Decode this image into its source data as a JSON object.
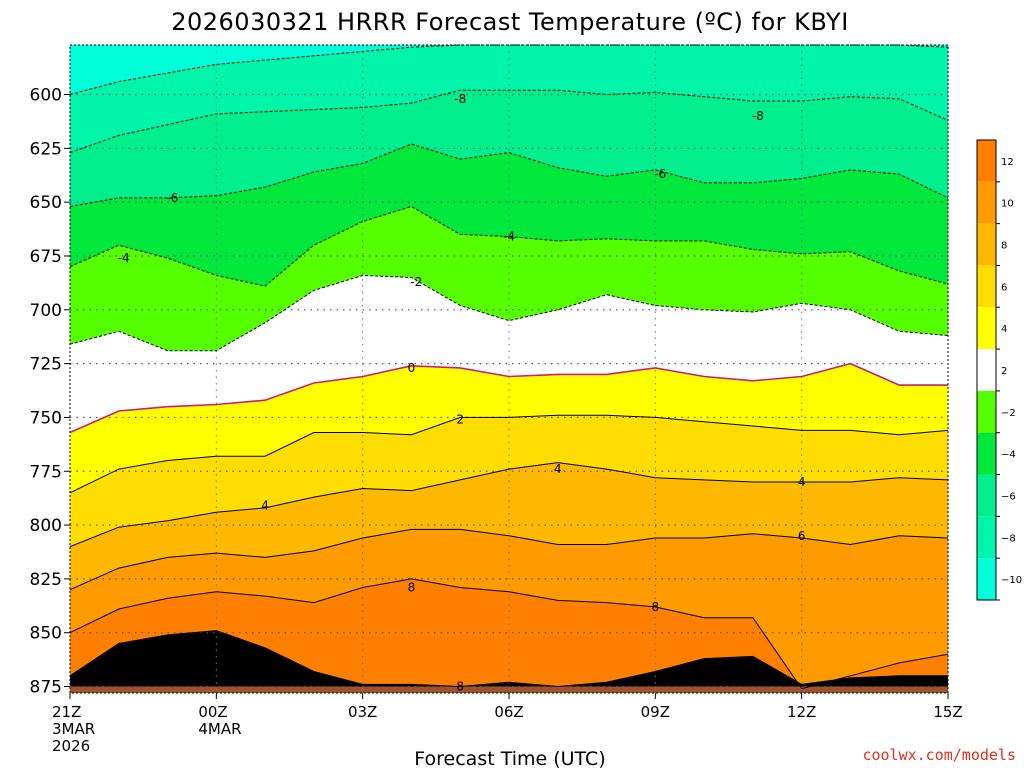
{
  "title": "2026030321 HRRR Forecast Temperature (ºC) for KBYI",
  "credit": "coolwx.com/models",
  "colors": {
    "t_lt_m10": "#00ffd9",
    "t_m10_m8": "#00f5a8",
    "t_m8_m6": "#00ee8b",
    "t_m6_m4": "#00e83c",
    "t_m4_m2": "#55ff00",
    "t_m2_2": "#ffffff",
    "t_2_4": "#ffff00",
    "t_4_6": "#ffdd00",
    "t_6_8": "#ffb800",
    "t_8_10": "#ff9a00",
    "t_10_12": "#ff8000",
    "ground": "#a0522d",
    "zero_line": "#cc1e78",
    "credit": "#e0301e"
  },
  "chart_data": {
    "type": "heatmap",
    "title": "2026030321 HRRR Forecast Temperature (ºC) for KBYI",
    "xlabel": "Forecast Time (UTC)",
    "ylabel": "",
    "x_ticks": [
      {
        "hour": 0,
        "lines": [
          "21Z",
          "3MAR",
          "2026"
        ]
      },
      {
        "hour": 3,
        "lines": [
          "00Z",
          "4MAR"
        ]
      },
      {
        "hour": 6,
        "lines": [
          "03Z"
        ]
      },
      {
        "hour": 9,
        "lines": [
          "06Z"
        ]
      },
      {
        "hour": 12,
        "lines": [
          "09Z"
        ]
      },
      {
        "hour": 15,
        "lines": [
          "12Z"
        ]
      },
      {
        "hour": 18,
        "lines": [
          "15Z"
        ]
      }
    ],
    "y_ticks": [
      600,
      625,
      650,
      675,
      700,
      725,
      750,
      775,
      800,
      825,
      850,
      875
    ],
    "xlim_hours": [
      0,
      18
    ],
    "ylim_hPa": [
      577,
      878
    ],
    "ground_pressure_hPa": 875,
    "colorbar": {
      "labels": [
        "12",
        "10",
        "8",
        "6",
        "4",
        "2",
        "−2",
        "−4",
        "−6",
        "−8",
        "−10"
      ],
      "bands": [
        "t_10_12",
        "t_8_10",
        "t_6_8",
        "t_4_6",
        "t_2_4",
        "t_m2_2",
        "t_m4_m2",
        "t_m6_m4",
        "t_m8_m6",
        "t_m10_m8",
        "t_lt_m10"
      ]
    },
    "hours": [
      0,
      1,
      2,
      3,
      4,
      5,
      6,
      7,
      8,
      9,
      10,
      11,
      12,
      13,
      14,
      15,
      16,
      17,
      18
    ],
    "isotherms": [
      {
        "temp": -10,
        "pressure": [
          600,
          594,
          590,
          586,
          584,
          582,
          580,
          578,
          577,
          577,
          577,
          577,
          577,
          577,
          577,
          577,
          577,
          577,
          578
        ]
      },
      {
        "temp": -8,
        "pressure": [
          627,
          619,
          614,
          609,
          608,
          607,
          606,
          604,
          598,
          598,
          598,
          600,
          599,
          601,
          603,
          603,
          601,
          602,
          612
        ]
      },
      {
        "temp": -6,
        "pressure": [
          652,
          648,
          648,
          647,
          643,
          636,
          632,
          623,
          630,
          627,
          634,
          638,
          635,
          641,
          641,
          639,
          635,
          637,
          648
        ]
      },
      {
        "temp": -4,
        "pressure": [
          680,
          670,
          676,
          684,
          689,
          670,
          659,
          652,
          665,
          666,
          668,
          667,
          668,
          668,
          672,
          674,
          673,
          682,
          688
        ]
      },
      {
        "temp": -2,
        "pressure": [
          716,
          710,
          719,
          719,
          706,
          691,
          684,
          685,
          698,
          705,
          700,
          693,
          698,
          700,
          701,
          697,
          700,
          710,
          712
        ]
      },
      {
        "temp": 0,
        "pressure": [
          757,
          747,
          745,
          744,
          742,
          734,
          731,
          726,
          727,
          731,
          730,
          730,
          727,
          731,
          733,
          731,
          725,
          735,
          735
        ]
      },
      {
        "temp": 2,
        "pressure": [
          785,
          774,
          770,
          768,
          768,
          757,
          757,
          758,
          750,
          750,
          749,
          749,
          750,
          752,
          754,
          756,
          756,
          758,
          756
        ]
      },
      {
        "temp": 4,
        "pressure": [
          810,
          801,
          798,
          794,
          792,
          787,
          783,
          784,
          779,
          774,
          771,
          774,
          778,
          779,
          780,
          780,
          780,
          778,
          779
        ]
      },
      {
        "temp": 6,
        "pressure": [
          830,
          820,
          815,
          813,
          815,
          812,
          806,
          802,
          802,
          805,
          809,
          809,
          806,
          806,
          804,
          806,
          809,
          805,
          806
        ]
      },
      {
        "temp": 8,
        "pressure": [
          850,
          839,
          834,
          831,
          833,
          836,
          829,
          825,
          829,
          831,
          835,
          836,
          838,
          843,
          843,
          876,
          870,
          864,
          860
        ]
      },
      {
        "temp": 10,
        "pressure": [
          870,
          855,
          851,
          849,
          857,
          868,
          874,
          874,
          875,
          873,
          875,
          873,
          868,
          862,
          861,
          874,
          871,
          870,
          870
        ]
      }
    ],
    "contour_labels": [
      {
        "text": "-8",
        "hour": 8.0,
        "pressure": 602
      },
      {
        "text": "-8",
        "hour": 14.1,
        "pressure": 610
      },
      {
        "text": "-6",
        "hour": 2.1,
        "pressure": 648
      },
      {
        "text": "-6",
        "hour": 12.1,
        "pressure": 637
      },
      {
        "text": "-4",
        "hour": 1.1,
        "pressure": 676
      },
      {
        "text": "-4",
        "hour": 9.0,
        "pressure": 666
      },
      {
        "text": "-2",
        "hour": 7.1,
        "pressure": 687
      },
      {
        "text": "0",
        "hour": 7.0,
        "pressure": 727
      },
      {
        "text": "2",
        "hour": 8.0,
        "pressure": 751
      },
      {
        "text": "4",
        "hour": 4.0,
        "pressure": 791
      },
      {
        "text": "4",
        "hour": 10.0,
        "pressure": 774
      },
      {
        "text": "4",
        "hour": 15.0,
        "pressure": 780
      },
      {
        "text": "6",
        "hour": 15.0,
        "pressure": 805
      },
      {
        "text": "8",
        "hour": 7.0,
        "pressure": 829
      },
      {
        "text": "8",
        "hour": 12.0,
        "pressure": 838
      },
      {
        "text": "8",
        "hour": 8.0,
        "pressure": 875
      }
    ]
  }
}
